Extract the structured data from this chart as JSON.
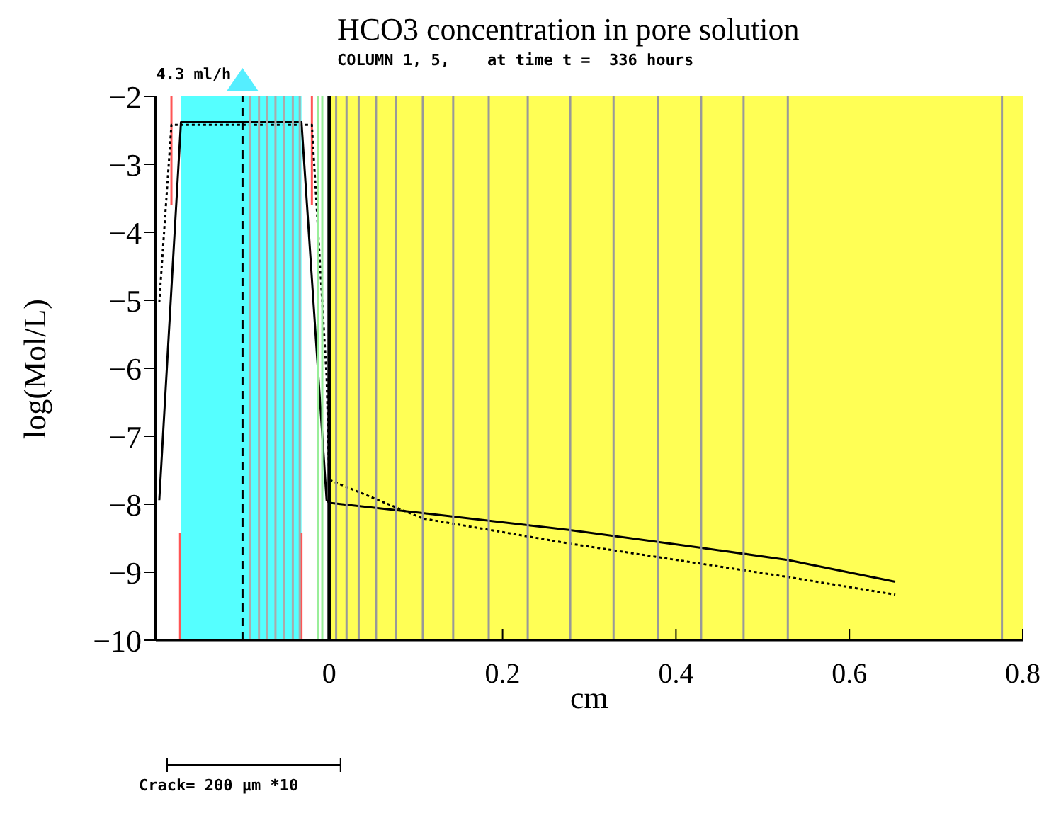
{
  "chart_data": {
    "type": "line",
    "title": "HCO3 concentration in pore solution",
    "subtitle": "COLUMN 1, 5,    at time t =  336 hours",
    "xlabel": "cm",
    "ylabel": "log(Mol/L)",
    "xlim": [
      -0.2,
      0.8
    ],
    "xticks": [
      0,
      0.2,
      0.4,
      0.6,
      0.8
    ],
    "ylim": [
      -10,
      -2
    ],
    "yticks": [
      -10,
      -9,
      -8,
      -7,
      -6,
      -5,
      -4,
      -3,
      -2
    ],
    "grid": false,
    "marker": "none",
    "series": [
      {
        "color": "#ff5555",
        "x": [
          -0.182,
          -0.182
        ],
        "values": [
          -2,
          -3.6
        ]
      },
      {
        "color": "#ff5555",
        "x": [
          -0.02,
          -0.02
        ],
        "values": [
          -2,
          -3.6
        ]
      },
      {
        "color": "#ff5555",
        "x": [
          -0.172,
          -0.172
        ],
        "values": [
          -8.42,
          -10
        ]
      },
      {
        "color": "#ff5555",
        "x": [
          -0.032,
          -0.032
        ],
        "values": [
          -8.42,
          -10
        ]
      },
      {
        "color": "#000000",
        "line_style": "solid",
        "x": [
          -0.196,
          -0.171,
          -0.032,
          -0.003,
          0.0,
          0.108,
          0.278,
          0.429,
          0.529,
          0.653
        ],
        "values": [
          -7.94,
          -2.38,
          -2.38,
          -7.94,
          -7.98,
          -8.13,
          -8.38,
          -8.64,
          -8.82,
          -9.14
        ]
      },
      {
        "color": "#000000",
        "line_style": "dotted",
        "x": [
          -0.196,
          -0.182,
          -0.02,
          -0.003,
          0.0,
          0.108,
          0.278,
          0.529,
          0.653
        ],
        "values": [
          -5.03,
          -2.42,
          -2.42,
          -6.12,
          -7.64,
          -8.21,
          -8.58,
          -9.07,
          -9.33
        ]
      }
    ],
    "bands": [
      {
        "axis": "x",
        "from": 0,
        "to": 0.8,
        "color": "#ffff55"
      },
      {
        "axis": "x",
        "from": -0.171,
        "to": -0.032,
        "color": "#55ffff"
      }
    ],
    "ref_lines": [
      {
        "axis": "x",
        "value": -0.091,
        "color": "#aaaaaa"
      },
      {
        "axis": "x",
        "value": -0.081,
        "color": "#aaaaaa"
      },
      {
        "axis": "x",
        "value": -0.072,
        "color": "#aaaaaa"
      },
      {
        "axis": "x",
        "value": -0.062,
        "color": "#aaaaaa"
      },
      {
        "axis": "x",
        "value": -0.052,
        "color": "#aaaaaa"
      },
      {
        "axis": "x",
        "value": -0.042,
        "color": "#aaaaaa"
      },
      {
        "axis": "x",
        "value": -0.034,
        "color": "#aaaaaa"
      },
      {
        "axis": "x",
        "value": -0.013,
        "color": "#99ee99"
      },
      {
        "axis": "x",
        "value": -0.008,
        "color": "#99ee99"
      },
      {
        "axis": "x",
        "value": 0.008,
        "color": "#999999"
      },
      {
        "axis": "x",
        "value": 0.02,
        "color": "#999999"
      },
      {
        "axis": "x",
        "value": 0.034,
        "color": "#999999"
      },
      {
        "axis": "x",
        "value": 0.054,
        "color": "#999999"
      },
      {
        "axis": "x",
        "value": 0.077,
        "color": "#999999"
      },
      {
        "axis": "x",
        "value": 0.108,
        "color": "#999999"
      },
      {
        "axis": "x",
        "value": 0.143,
        "color": "#999999"
      },
      {
        "axis": "x",
        "value": 0.184,
        "color": "#999999"
      },
      {
        "axis": "x",
        "value": 0.229,
        "color": "#999999"
      },
      {
        "axis": "x",
        "value": 0.278,
        "color": "#999999"
      },
      {
        "axis": "x",
        "value": 0.328,
        "color": "#999999"
      },
      {
        "axis": "x",
        "value": 0.379,
        "color": "#999999"
      },
      {
        "axis": "x",
        "value": 0.429,
        "color": "#999999"
      },
      {
        "axis": "x",
        "value": 0.478,
        "color": "#999999"
      },
      {
        "axis": "x",
        "value": 0.529,
        "color": "#999999"
      },
      {
        "axis": "x",
        "value": 0.776,
        "color": "#999999"
      },
      {
        "axis": "x",
        "value": 0,
        "color": "#000000"
      },
      {
        "axis": "x",
        "value": -0.1,
        "color": "#000000",
        "line_style": "dashed",
        "label": "4.3 ml/h"
      }
    ],
    "annotations": [
      "Crack= 200 μm *10"
    ]
  }
}
